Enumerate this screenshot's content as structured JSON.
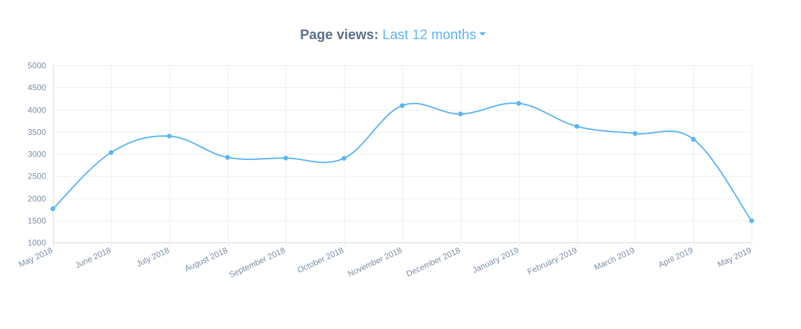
{
  "header": {
    "title_label": "Page views:",
    "range_value": "Last 12 months"
  },
  "colors": {
    "line": "#5cb5f2",
    "grid": "#eeeff2",
    "axis": "#d6d9de",
    "tick_text": "#7d8ea6",
    "title": "#5c6f8b"
  },
  "chart_data": {
    "type": "line",
    "title": "Page views:",
    "xlabel": "",
    "ylabel": "",
    "categories": [
      "May 2018",
      "June 2018",
      "July 2018",
      "August 2018",
      "September 2018",
      "October 2018",
      "November 2018",
      "December 2018",
      "January 2019",
      "February 2019",
      "March 2019",
      "April 2019",
      "May 2019"
    ],
    "series": [
      {
        "values": [
          1760,
          3030,
          3400,
          2920,
          2905,
          2900,
          4090,
          3900,
          4140,
          3620,
          3460,
          3330,
          1490
        ]
      }
    ],
    "ylim": [
      1000,
      5000
    ],
    "yticks": [
      1000,
      1500,
      2000,
      2500,
      3000,
      3500,
      4000,
      4500,
      5000
    ],
    "grid": true,
    "smooth": true,
    "legend": "none"
  }
}
